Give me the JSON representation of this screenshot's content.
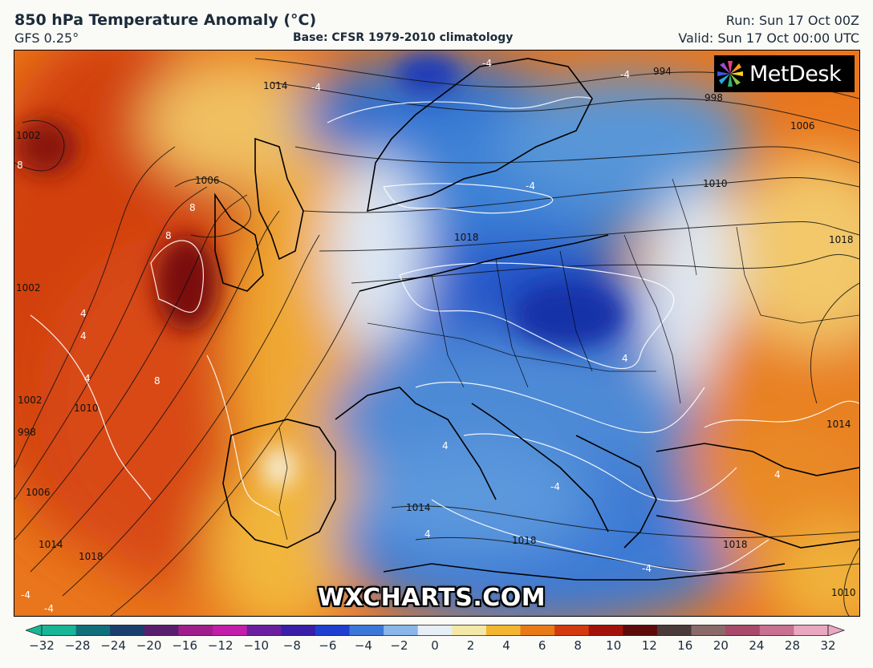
{
  "header": {
    "title": "850 hPa Temperature Anomaly (°C)",
    "model": "GFS 0.25°",
    "base": "Base: CFSR 1979-2010 climatology",
    "run": "Run: Sun 17 Oct 00Z",
    "valid": "Valid: Sun 17 Oct 00:00 UTC"
  },
  "logo": {
    "text": "MetDesk"
  },
  "watermark": "WXCHARTS.COM",
  "isobar_labels": [
    "1014",
    "994",
    "998",
    "1006",
    "1010",
    "1018",
    "1002",
    "1006",
    "1002",
    "1002",
    "1010",
    "998",
    "1006",
    "1014",
    "1018",
    "1018",
    "1018",
    "1014",
    "1018",
    "1014",
    "1010"
  ],
  "anomaly_labels": [
    "-4",
    "-4",
    "-4",
    "-4",
    "-4",
    "-4",
    "8",
    "8",
    "8",
    "8",
    "4",
    "4",
    "4",
    "4",
    "4",
    "4",
    "4",
    "-4",
    "-4"
  ],
  "colorbar": {
    "ticks": [
      "−32",
      "−28",
      "−24",
      "−20",
      "−16",
      "−12",
      "−10",
      "−8",
      "−6",
      "−4",
      "−2",
      "0",
      "2",
      "4",
      "6",
      "8",
      "10",
      "12",
      "16",
      "20",
      "24",
      "28",
      "32"
    ],
    "colors": [
      "#18b596",
      "#0f6f7a",
      "#1a3e6e",
      "#5a1e6e",
      "#a01e8c",
      "#c21eaa",
      "#6c1ea0",
      "#3a1ea8",
      "#1f3fd0",
      "#3c78d8",
      "#8ab6e8",
      "#e6eef8",
      "#f4e8a8",
      "#f2b630",
      "#e87a18",
      "#d33a10",
      "#a3120a",
      "#5e0a0a",
      "#4a3a3a",
      "#8a6a6a",
      "#a84a6a",
      "#c87090",
      "#eaa8c0"
    ]
  }
}
